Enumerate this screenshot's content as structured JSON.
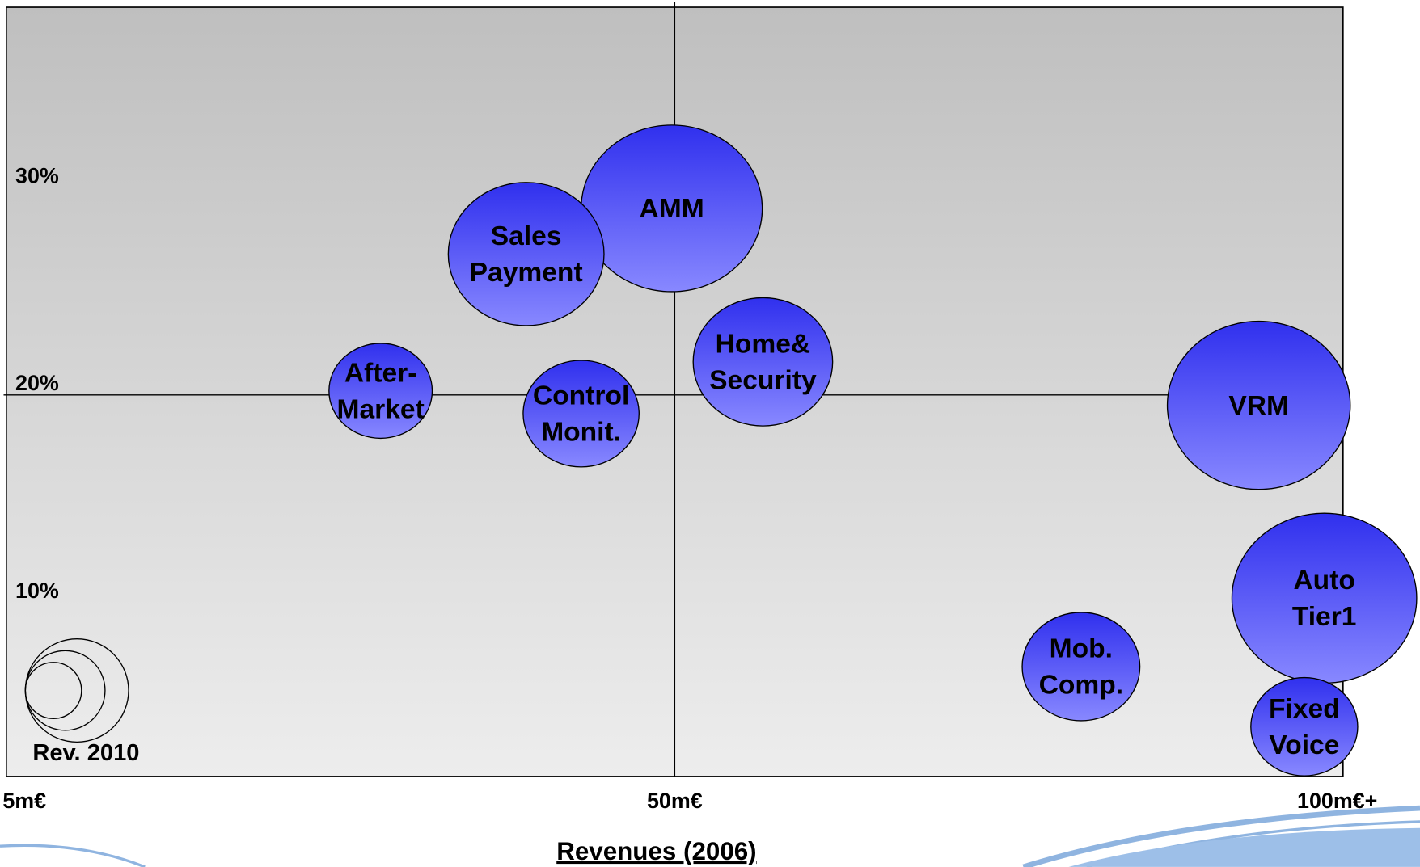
{
  "chart_data": {
    "type": "bubble",
    "x_label": "Revenues (2006)",
    "size_legend_label": "Rev. 2010",
    "labels": [
      [
        "AMM"
      ],
      [
        "Sales",
        "Payment"
      ],
      [
        "Home&",
        "Security"
      ],
      [
        "After-",
        "Market"
      ],
      [
        "Control",
        "Monit."
      ],
      [
        "VRM"
      ],
      [
        "Auto",
        "Tier1"
      ],
      [
        "Mob.",
        "Comp."
      ],
      [
        "Fixed",
        "Voice"
      ]
    ],
    "x": [
      49.8,
      40.0,
      56.6,
      30.2,
      43.7,
      93.7,
      98.6,
      80.4,
      97.1
    ],
    "y": [
      29.0,
      26.8,
      21.6,
      20.2,
      19.1,
      19.5,
      10.2,
      6.9,
      4.0
    ],
    "sizes": [
      100,
      86,
      77,
      57,
      64,
      101,
      102,
      65,
      59
    ],
    "color": "#4a4af5",
    "xlim": [
      5,
      100
    ],
    "xticks": [
      {
        "value": 5,
        "label": "5m€"
      },
      {
        "value": 50,
        "label": "50m€"
      },
      {
        "value": 100,
        "label": "100m€+"
      }
    ],
    "ylim": [
      1.6,
      38.7
    ],
    "yticks": [
      {
        "value": 10,
        "label": "10%"
      },
      {
        "value": 20,
        "label": "20%"
      },
      {
        "value": 30,
        "label": "30%"
      }
    ]
  }
}
